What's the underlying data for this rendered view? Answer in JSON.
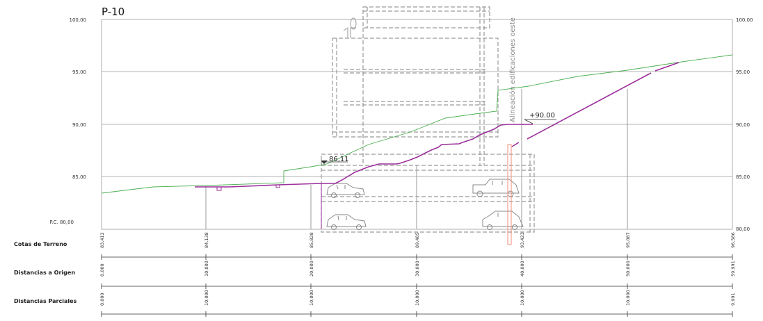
{
  "title": "P-10",
  "y_axis": {
    "labels": [
      "100,00",
      "95,00",
      "90,00",
      "85,00"
    ],
    "pc_label": "P.C. 80,00",
    "right_labels": [
      "100,00",
      "95,00",
      "90,00",
      "85,00",
      "80,00"
    ]
  },
  "annotations": {
    "level_1": "86,11",
    "level_2": "+90.00",
    "alignment": "Alineación edificaciones oeste"
  },
  "table": {
    "rows": [
      {
        "label": "Cotas de Terreno",
        "values": [
          "83,412",
          "84,138",
          "85,828",
          "89,485",
          "93,423",
          "95,087",
          "96,586"
        ]
      },
      {
        "label": "Distancias a Origen",
        "values": [
          "0,000",
          "10,000",
          "20,000",
          "30,000",
          "40,000",
          "50,000",
          "59,991"
        ]
      },
      {
        "label": "Distancias Parciales",
        "values": [
          "0,000",
          "10,000",
          "10,000",
          "10,000",
          "10,000",
          "10,000",
          "9,991"
        ]
      }
    ]
  },
  "colors": {
    "terrain": "#4caf50",
    "road": "#9c2f9c",
    "building": "#8c8c8c",
    "marker": "#f28b78"
  }
}
